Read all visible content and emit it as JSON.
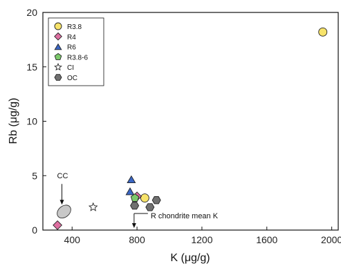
{
  "chart_data": {
    "type": "scatter",
    "title": "",
    "xlabel": "K (μg/g)",
    "ylabel": "Rb (μg/g)",
    "xlim": [
      220,
      2040
    ],
    "ylim": [
      0,
      20
    ],
    "xticks": [
      400,
      800,
      1200,
      1600,
      2000
    ],
    "yticks": [
      0,
      5,
      10,
      15,
      20
    ],
    "grid": false,
    "legend_position": "top-left",
    "series": [
      {
        "name": "R3.8",
        "marker": "circle",
        "color": "#f7e36a",
        "points": [
          {
            "x": 1945,
            "y": 18.2
          },
          {
            "x": 848,
            "y": 2.95
          }
        ]
      },
      {
        "name": "R4",
        "marker": "diamond",
        "color": "#de6fa1",
        "points": [
          {
            "x": 310,
            "y": 0.45
          },
          {
            "x": 800,
            "y": 3.1
          }
        ]
      },
      {
        "name": "R6",
        "marker": "triangle",
        "color": "#3a66c4",
        "points": [
          {
            "x": 765,
            "y": 4.65
          },
          {
            "x": 757,
            "y": 3.55
          }
        ]
      },
      {
        "name": "R3.8-6",
        "marker": "pentagon",
        "color": "#7cc96b",
        "points": [
          {
            "x": 787,
            "y": 2.95
          }
        ]
      },
      {
        "name": "CI",
        "marker": "star",
        "color": "#ffffff",
        "points": [
          {
            "x": 530,
            "y": 2.1
          }
        ]
      },
      {
        "name": "OC",
        "marker": "hexagon",
        "color": "#707070",
        "points": [
          {
            "x": 785,
            "y": 2.25
          },
          {
            "x": 880,
            "y": 2.1
          },
          {
            "x": 920,
            "y": 2.75
          }
        ]
      }
    ],
    "annotations": [
      {
        "text": "CC",
        "target_x": 350,
        "target_y": 1.7
      },
      {
        "text": "R chondrite mean K",
        "target_x": 782,
        "target_y": 0.2
      }
    ]
  }
}
